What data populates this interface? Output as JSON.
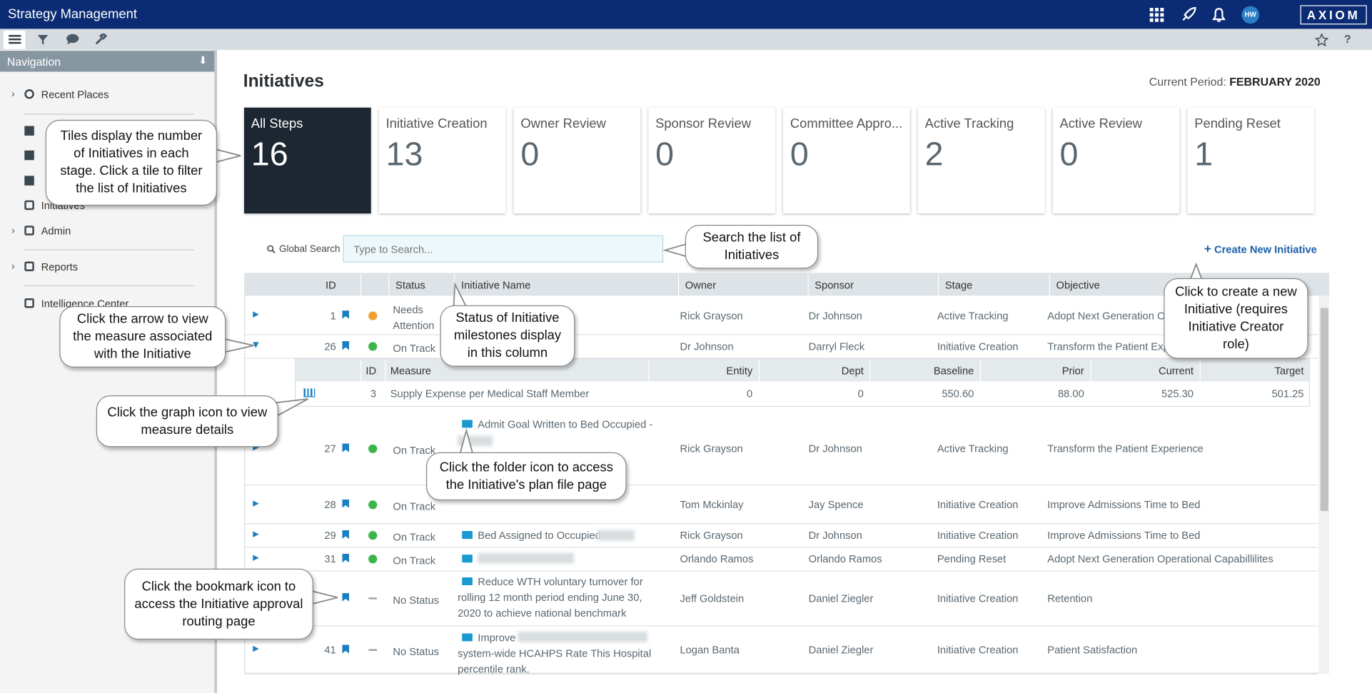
{
  "header": {
    "app_title": "Strategy Management",
    "user_initials": "HW",
    "brand": "AXIOM"
  },
  "navigation": {
    "title": "Navigation",
    "items": [
      "Recent Places",
      "Initiatives",
      "Admin",
      "Reports",
      "Intelligence Center"
    ]
  },
  "page": {
    "title": "Initiatives",
    "period_label": "Current Period:",
    "period_value": "FEBRUARY 2020"
  },
  "tiles": [
    {
      "label": "All Steps",
      "count": 16
    },
    {
      "label": "Initiative Creation",
      "count": 13
    },
    {
      "label": "Owner Review",
      "count": 0
    },
    {
      "label": "Sponsor Review",
      "count": 0
    },
    {
      "label": "Committee Appro...",
      "count": 0
    },
    {
      "label": "Active Tracking",
      "count": 2
    },
    {
      "label": "Active Review",
      "count": 0
    },
    {
      "label": "Pending Reset",
      "count": 1
    }
  ],
  "search": {
    "label": "Global Search",
    "placeholder": "Type to Search...",
    "create_button": "Create New Initiative"
  },
  "table": {
    "columns": [
      "ID",
      "Status",
      "Initiative Name",
      "Owner",
      "Sponsor",
      "Stage",
      "Objective"
    ],
    "rows": [
      {
        "id": 1,
        "status": "Needs Attention",
        "status_color": "#f0a030",
        "owner": "Rick Grayson",
        "sponsor": "Dr Johnson",
        "stage": "Active Tracking",
        "objective": "Adopt Next Generation Op"
      },
      {
        "id": 26,
        "status": "On Track",
        "status_color": "#3cb44a",
        "owner": "Dr Johnson",
        "sponsor": "Darryl Fleck",
        "stage": "Initiative Creation",
        "objective": "Transform the Patient Expe"
      },
      {
        "id": 27,
        "status": "On Track",
        "status_color": "#3cb44a",
        "name": "Admit Goal Written to Bed Occupied -",
        "owner": "Rick Grayson",
        "sponsor": "Dr Johnson",
        "stage": "Active Tracking",
        "objective": "Transform the Patient Experience"
      },
      {
        "id": 28,
        "status": "On Track",
        "status_color": "#3cb44a",
        "owner": "Tom Mckinlay",
        "sponsor": "Jay Spence",
        "stage": "Initiative Creation",
        "objective": "Improve Admissions Time to Bed"
      },
      {
        "id": 29,
        "status": "On Track",
        "status_color": "#3cb44a",
        "name": "Bed Assigned to Occupied",
        "owner": "Rick Grayson",
        "sponsor": "Dr Johnson",
        "stage": "Initiative Creation",
        "objective": "Improve Admissions Time to Bed"
      },
      {
        "id": 31,
        "status": "On Track",
        "status_color": "#3cb44a",
        "owner": "Orlando Ramos",
        "sponsor": "Orlando Ramos",
        "stage": "Pending Reset",
        "objective": "Adopt Next Generation Operational Capabillilites"
      },
      {
        "status": "No Status",
        "status_color": "#9aa3a8",
        "name": "Reduce WTH voluntary turnover for rolling 12 month period ending June 30, 2020 to achieve national benchmark",
        "owner": "Jeff Goldstein",
        "sponsor": "Daniel Ziegler",
        "stage": "Initiative Creation",
        "objective": "Retention"
      },
      {
        "id": 41,
        "status": "No Status",
        "status_color": "#9aa3a8",
        "name": "Improve",
        "name_cont": "system-wide HCAHPS Rate This Hospital percentile rank.",
        "owner": "Logan Banta",
        "sponsor": "Daniel Ziegler",
        "stage": "Initiative Creation",
        "objective": "Patient Satisfaction"
      }
    ]
  },
  "measure_table": {
    "columns": [
      "ID",
      "Measure",
      "Entity",
      "Dept",
      "Baseline",
      "Prior",
      "Current",
      "Target"
    ],
    "rows": [
      [
        "3",
        "Supply Expense per Medical Staff Member",
        "0",
        "0",
        "550.60",
        "88.00",
        "525.30",
        "501.25"
      ]
    ]
  },
  "callouts": [
    "Tiles display the number of Initiatives in each stage. Click a tile to filter the list of Initiatives",
    "Search the list of Initiatives",
    "Click to create a new Initiative (requires Initiative Creator role)",
    "Click the arrow to view the measure associated with the Initiative",
    "Status of Initiative milestones display in this column",
    "Click the graph icon to view measure details",
    "Click the folder icon to access the Initiative's plan file page",
    "Click the bookmark icon to access the Initiative approval routing page"
  ]
}
